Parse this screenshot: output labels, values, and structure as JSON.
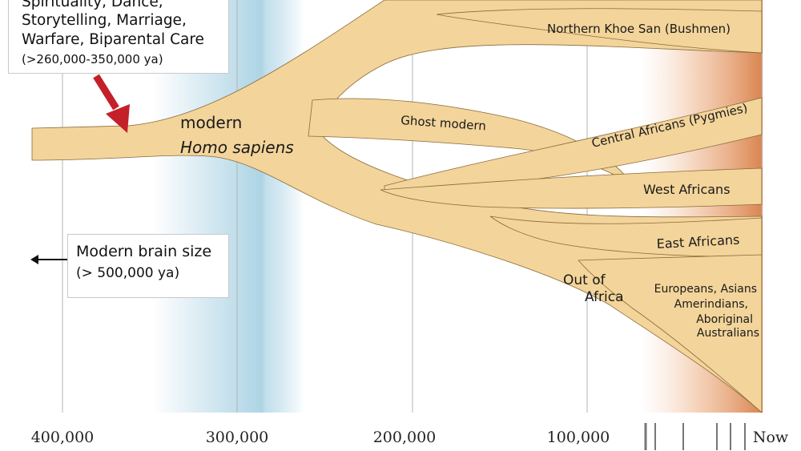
{
  "top_box": {
    "lines": [
      "Spirituality, Dance,",
      "Storytelling, Marriage,",
      "Warfare, Biparental Care"
    ],
    "date": "(>260,000-350,000 ya)"
  },
  "brain_box": {
    "line1": "Modern brain size",
    "line2": "(> 500,000 ya)"
  },
  "branch_labels": {
    "modern": "modern",
    "homo_sapiens": "Homo sapiens",
    "ghost": "Ghost modern",
    "khoe_san": "Northern Khoe San (Bushmen)",
    "central": "Central Africans (Pygmies)",
    "west": "West Africans",
    "east": "East Africans",
    "out_of_africa": [
      "Out of",
      "Africa"
    ],
    "eurasia": [
      "Europeans, Asians",
      "Amerindians,",
      "Aboriginal",
      "Australians"
    ]
  },
  "axis": {
    "ticks": [
      "400,000",
      "300,000",
      "200,000",
      "100,000"
    ],
    "now": "Now"
  },
  "colors": {
    "branch": "#f3d49a",
    "branch_edge": "#8a6a3a",
    "arrow": "#c4202a",
    "shade_blue": "#a9d2e3",
    "shade_orange": "#d77d45",
    "grid": "#b4b4b4"
  }
}
